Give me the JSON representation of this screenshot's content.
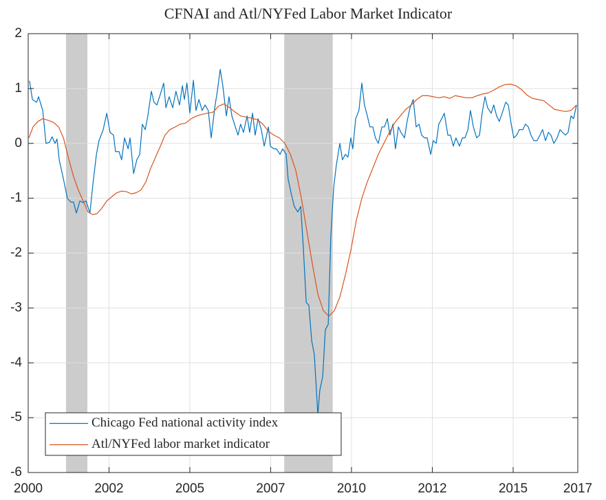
{
  "chart_data": {
    "type": "line",
    "title": "CFNAI and Atl/NYFed Labor Market Indicator",
    "xlim": [
      2000,
      2017
    ],
    "xticks": [
      2000,
      {
        "value": 2002.5,
        "label": "2002"
      },
      2005,
      {
        "value": 2007.5,
        "label": "2007"
      },
      2010,
      {
        "value": 2012.5,
        "label": "2012"
      },
      2015,
      2017
    ],
    "ylim": [
      -6,
      2
    ],
    "yticks": [
      -6,
      -5,
      -4,
      -3,
      -2,
      -1,
      0,
      1,
      2
    ],
    "grid": true,
    "legend": "southwest",
    "shaded_periods": [
      [
        2001.17,
        2001.83
      ],
      [
        2007.92,
        2009.42
      ]
    ],
    "shade_color": "#cccccc",
    "series": [
      {
        "name": "Chicago Fed national activity index",
        "color": "#0072BD",
        "x": [
          2000.04,
          2000.13,
          2000.26,
          2000.32,
          2000.45,
          2000.55,
          2000.66,
          2000.74,
          2000.83,
          2000.89,
          2000.96,
          2001.09,
          2001.21,
          2001.32,
          2001.4,
          2001.49,
          2001.6,
          2001.7,
          2001.79,
          2001.91,
          2002.0,
          2002.11,
          2002.19,
          2002.32,
          2002.43,
          2002.53,
          2002.64,
          2002.7,
          2002.81,
          2002.89,
          2002.98,
          2003.09,
          2003.15,
          2003.26,
          2003.36,
          2003.45,
          2003.53,
          2003.62,
          2003.7,
          2003.81,
          2003.89,
          2003.98,
          2004.09,
          2004.19,
          2004.26,
          2004.36,
          2004.47,
          2004.57,
          2004.68,
          2004.77,
          2004.83,
          2004.91,
          2005.0,
          2005.11,
          2005.19,
          2005.28,
          2005.38,
          2005.47,
          2005.57,
          2005.66,
          2005.77,
          2005.85,
          2005.94,
          2006.02,
          2006.13,
          2006.21,
          2006.3,
          2006.38,
          2006.49,
          2006.57,
          2006.66,
          2006.77,
          2006.85,
          2006.94,
          2007.02,
          2007.11,
          2007.21,
          2007.3,
          2007.43,
          2007.49,
          2007.6,
          2007.68,
          2007.79,
          2007.87,
          2007.98,
          2008.04,
          2008.13,
          2008.23,
          2008.34,
          2008.43,
          2008.51,
          2008.6,
          2008.68,
          2008.77,
          2008.85,
          2008.96,
          2009.02,
          2009.11,
          2009.19,
          2009.28,
          2009.36,
          2009.45,
          2009.53,
          2009.64,
          2009.72,
          2009.81,
          2009.89,
          2009.98,
          2010.04,
          2010.13,
          2010.23,
          2010.32,
          2010.4,
          2010.49,
          2010.57,
          2010.66,
          2010.74,
          2010.83,
          2010.94,
          2011.02,
          2011.11,
          2011.19,
          2011.28,
          2011.36,
          2011.45,
          2011.53,
          2011.64,
          2011.72,
          2011.81,
          2011.91,
          2012.0,
          2012.09,
          2012.17,
          2012.26,
          2012.34,
          2012.45,
          2012.53,
          2012.62,
          2012.7,
          2012.79,
          2012.87,
          2012.98,
          2013.06,
          2013.15,
          2013.23,
          2013.34,
          2013.43,
          2013.51,
          2013.6,
          2013.68,
          2013.77,
          2013.87,
          2013.96,
          2014.04,
          2014.13,
          2014.21,
          2014.32,
          2014.4,
          2014.49,
          2014.57,
          2014.66,
          2014.77,
          2014.85,
          2014.94,
          2015.02,
          2015.11,
          2015.19,
          2015.3,
          2015.38,
          2015.47,
          2015.55,
          2015.64,
          2015.74,
          2015.83,
          2015.91,
          2016.0,
          2016.09,
          2016.17,
          2016.26,
          2016.36,
          2016.45,
          2016.53,
          2016.62,
          2016.7,
          2016.79,
          2016.87,
          2016.96
        ],
        "values": [
          1.14,
          0.8,
          0.75,
          0.85,
          0.6,
          0.0,
          0.02,
          0.12,
          0.0,
          0.08,
          -0.3,
          -0.65,
          -1.0,
          -1.07,
          -1.07,
          -1.27,
          -1.05,
          -1.08,
          -1.05,
          -1.27,
          -0.75,
          -0.2,
          0.05,
          0.25,
          0.55,
          0.2,
          0.15,
          -0.15,
          -0.15,
          -0.3,
          0.1,
          -0.1,
          0.1,
          -0.55,
          -0.3,
          -0.2,
          0.35,
          0.25,
          0.5,
          0.95,
          0.75,
          0.7,
          0.9,
          1.1,
          0.65,
          0.85,
          0.65,
          0.95,
          0.7,
          1.05,
          0.8,
          1.1,
          0.55,
          1.15,
          0.6,
          0.8,
          0.6,
          0.7,
          0.6,
          0.1,
          0.65,
          0.95,
          1.35,
          1.05,
          0.5,
          0.85,
          0.5,
          0.35,
          0.15,
          0.35,
          0.2,
          0.5,
          0.2,
          0.55,
          0.15,
          0.45,
          0.25,
          -0.05,
          0.3,
          -0.05,
          -0.1,
          -0.1,
          -0.2,
          -0.1,
          -0.2,
          -0.65,
          -0.9,
          -1.15,
          -1.25,
          -1.15,
          -1.9,
          -2.9,
          -2.95,
          -3.6,
          -3.85,
          -4.95,
          -4.5,
          -4.25,
          -3.4,
          -3.3,
          -1.7,
          -0.8,
          -0.4,
          0.0,
          -0.3,
          -0.2,
          -0.25,
          0.1,
          -0.1,
          0.45,
          0.6,
          1.1,
          0.7,
          0.5,
          0.3,
          0.3,
          0.1,
          0.0,
          0.3,
          0.3,
          0.45,
          0.15,
          0.35,
          -0.1,
          0.3,
          0.2,
          0.1,
          0.4,
          0.65,
          0.8,
          0.3,
          0.35,
          0.15,
          0.1,
          0.1,
          -0.2,
          0.05,
          0.0,
          0.35,
          0.45,
          0.55,
          0.15,
          0.15,
          -0.05,
          0.1,
          -0.05,
          0.1,
          0.1,
          0.25,
          0.6,
          0.3,
          0.1,
          0.15,
          0.55,
          0.85,
          0.65,
          0.55,
          0.7,
          0.5,
          0.4,
          0.55,
          0.75,
          0.7,
          0.35,
          0.1,
          0.15,
          0.25,
          0.25,
          0.35,
          0.3,
          0.15,
          0.05,
          0.05,
          0.15,
          0.25,
          0.05,
          0.2,
          0.15,
          0.0,
          0.1,
          0.25,
          0.2,
          0.15,
          0.2,
          0.5,
          0.45,
          0.7
        ]
      },
      {
        "name": "Atl/NYFed labor market indicator",
        "color": "#D95319",
        "x": [
          2000.02,
          2000.15,
          2000.3,
          2000.45,
          2000.62,
          2000.79,
          2000.94,
          2001.09,
          2001.26,
          2001.4,
          2001.55,
          2001.7,
          2001.85,
          2002.0,
          2002.13,
          2002.28,
          2002.43,
          2002.57,
          2002.74,
          2002.89,
          2003.04,
          2003.19,
          2003.34,
          2003.49,
          2003.64,
          2003.79,
          2003.94,
          2004.09,
          2004.23,
          2004.38,
          2004.55,
          2004.7,
          2004.87,
          2005.04,
          2005.21,
          2005.38,
          2005.55,
          2005.72,
          2005.89,
          2006.06,
          2006.23,
          2006.4,
          2006.57,
          2006.74,
          2006.91,
          2007.09,
          2007.26,
          2007.43,
          2007.6,
          2007.77,
          2007.94,
          2008.11,
          2008.28,
          2008.45,
          2008.62,
          2008.79,
          2008.96,
          2009.13,
          2009.3,
          2009.47,
          2009.64,
          2009.81,
          2009.98,
          2010.15,
          2010.32,
          2010.49,
          2010.66,
          2010.83,
          2011.0,
          2011.17,
          2011.34,
          2011.51,
          2011.68,
          2011.85,
          2012.02,
          2012.19,
          2012.36,
          2012.53,
          2012.7,
          2012.87,
          2013.04,
          2013.21,
          2013.38,
          2013.55,
          2013.72,
          2013.89,
          2014.06,
          2014.23,
          2014.4,
          2014.57,
          2014.74,
          2014.91,
          2015.09,
          2015.26,
          2015.43,
          2015.6,
          2015.77,
          2015.94,
          2016.11,
          2016.28,
          2016.45,
          2016.62,
          2016.79,
          2016.96
        ],
        "values": [
          0.1,
          0.3,
          0.4,
          0.45,
          0.42,
          0.38,
          0.3,
          0.1,
          -0.3,
          -0.6,
          -0.85,
          -1.05,
          -1.25,
          -1.3,
          -1.28,
          -1.18,
          -1.05,
          -0.98,
          -0.9,
          -0.87,
          -0.88,
          -0.92,
          -0.9,
          -0.85,
          -0.7,
          -0.45,
          -0.25,
          -0.05,
          0.15,
          0.25,
          0.3,
          0.35,
          0.37,
          0.45,
          0.5,
          0.53,
          0.55,
          0.57,
          0.68,
          0.72,
          0.65,
          0.57,
          0.5,
          0.48,
          0.46,
          0.43,
          0.35,
          0.22,
          0.15,
          0.1,
          0.0,
          -0.2,
          -0.5,
          -1.0,
          -1.6,
          -2.2,
          -2.75,
          -3.05,
          -3.15,
          -3.05,
          -2.8,
          -2.4,
          -1.95,
          -1.4,
          -1.0,
          -0.7,
          -0.45,
          -0.2,
          0.0,
          0.2,
          0.38,
          0.5,
          0.62,
          0.7,
          0.8,
          0.87,
          0.87,
          0.85,
          0.83,
          0.85,
          0.82,
          0.87,
          0.85,
          0.83,
          0.83,
          0.87,
          0.9,
          0.92,
          0.97,
          1.03,
          1.07,
          1.08,
          1.05,
          0.98,
          0.88,
          0.82,
          0.8,
          0.78,
          0.7,
          0.62,
          0.6,
          0.58,
          0.6,
          0.7
        ]
      }
    ]
  }
}
